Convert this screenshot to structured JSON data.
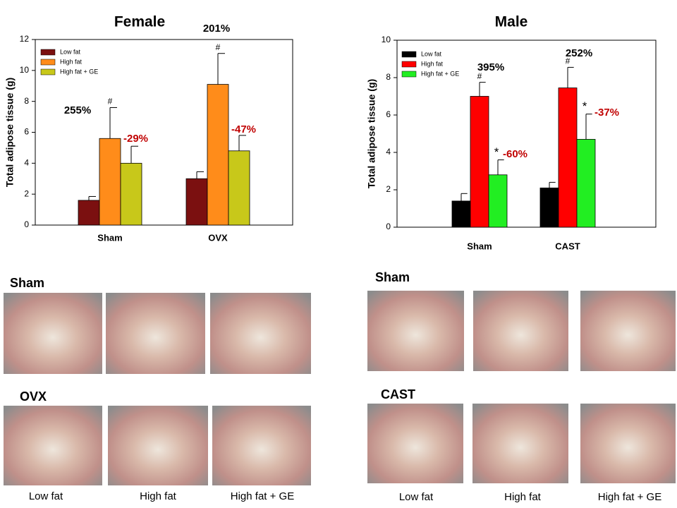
{
  "chart_data": [
    {
      "type": "bar",
      "title": "Female",
      "y_label": "Total adipose tissue (g)",
      "categories": [
        "Sham",
        "OVX"
      ],
      "series": [
        {
          "name": "Low fat",
          "color": "#7b1010",
          "values": [
            1.6,
            3.0
          ],
          "errors": [
            0.25,
            0.45
          ]
        },
        {
          "name": "High fat",
          "color": "#ff8c1a",
          "values": [
            5.6,
            9.1
          ],
          "errors": [
            2.0,
            2.0
          ],
          "marks": [
            "#",
            "#"
          ],
          "changes": [
            "255%",
            "201%"
          ]
        },
        {
          "name": "High fat + GE",
          "color": "#c8c81a",
          "values": [
            4.0,
            4.8
          ],
          "errors": [
            1.1,
            1.0
          ],
          "changes": [
            "-29%",
            "-47%"
          ]
        }
      ],
      "ylim": [
        0,
        12
      ],
      "yticks": [
        0,
        2,
        4,
        6,
        8,
        10,
        12
      ]
    },
    {
      "type": "bar",
      "title": "Male",
      "y_label": "Total adipose tissue (g)",
      "categories": [
        "Sham",
        "CAST"
      ],
      "series": [
        {
          "name": "Low fat",
          "color": "#000000",
          "values": [
            1.4,
            2.1
          ],
          "errors": [
            0.4,
            0.3
          ]
        },
        {
          "name": "High fat",
          "color": "#ff0000",
          "values": [
            7.0,
            7.45
          ],
          "errors": [
            0.75,
            1.1
          ],
          "marks": [
            "#",
            "#"
          ],
          "changes": [
            "395%",
            "252%"
          ]
        },
        {
          "name": "High fat + GE",
          "color": "#22ee22",
          "values": [
            2.8,
            4.7
          ],
          "errors": [
            0.8,
            1.35
          ],
          "marks": [
            "*",
            "*"
          ],
          "changes": [
            "-60%",
            "-37%"
          ]
        }
      ],
      "ylim": [
        0,
        10
      ],
      "yticks": [
        0,
        2,
        4,
        6,
        8,
        10
      ]
    }
  ],
  "photos": {
    "female": {
      "rows": [
        "Sham",
        "OVX"
      ],
      "columns": [
        "Low fat",
        "High fat",
        "High fat + GE"
      ]
    },
    "male": {
      "rows": [
        "Sham",
        "CAST"
      ],
      "columns": [
        "Low fat",
        "High fat",
        "High fat + GE"
      ]
    }
  }
}
